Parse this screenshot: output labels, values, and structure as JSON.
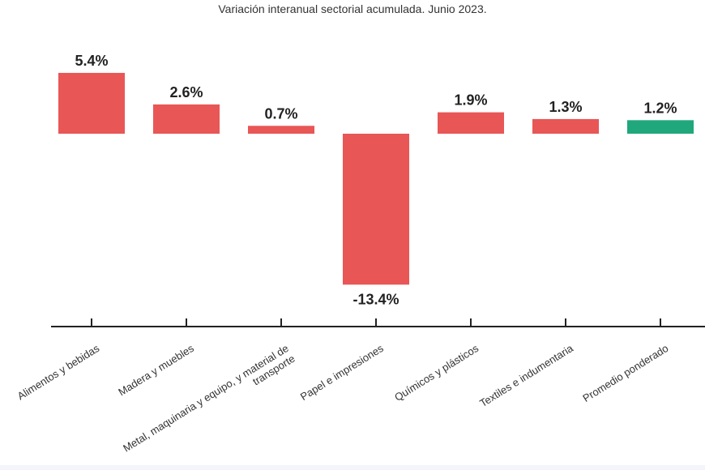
{
  "chart_data": {
    "type": "bar",
    "title": "Variación interanual sectorial acumulada. Junio 2023.",
    "categories": [
      "Alimentos y bebidas",
      "Madera y muebles",
      "Metal, maquinaria y equipo, y material de transporte",
      "Papel e impresiones",
      "Químicos y plásticos",
      "Textiles e indumentaria",
      "Promedio ponderado"
    ],
    "category_lines": [
      [
        "Alimentos y bebidas"
      ],
      [
        "Madera y muebles"
      ],
      [
        "Metal, maquinaria y equipo, y material de",
        "transporte"
      ],
      [
        "Papel e impresiones"
      ],
      [
        "Químicos y plásticos"
      ],
      [
        "Textiles e indumentaria"
      ],
      [
        "Promedio ponderado"
      ]
    ],
    "values": [
      5.4,
      2.6,
      0.7,
      -13.4,
      1.9,
      1.3,
      1.2
    ],
    "data_labels": [
      "5.4%",
      "2.6%",
      "0.7%",
      "-13.4%",
      "1.9%",
      "1.3%",
      "1.2%"
    ],
    "unit": "%",
    "colors": [
      "#e85656",
      "#e85656",
      "#e85656",
      "#e85656",
      "#e85656",
      "#e85656",
      "#20a77b"
    ],
    "grid": false,
    "legend": "none"
  }
}
